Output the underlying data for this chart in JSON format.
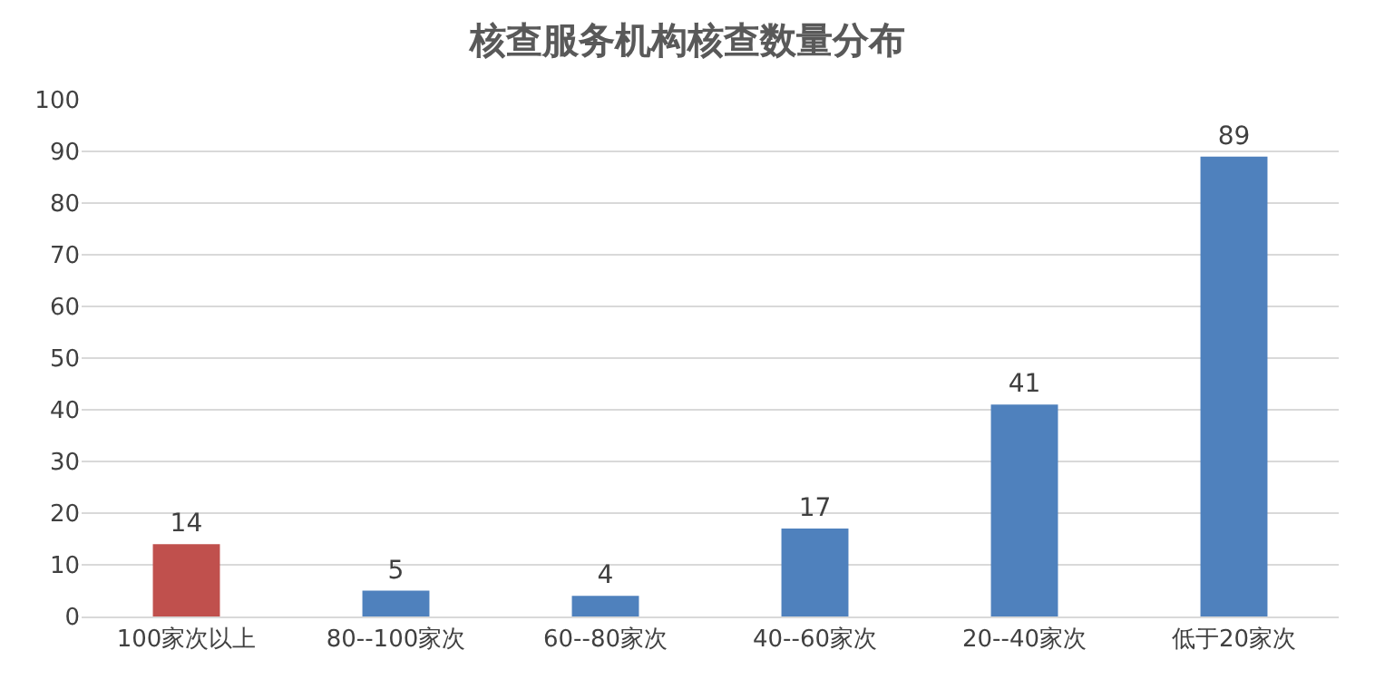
{
  "chart_data": {
    "type": "bar",
    "title": "核查服务机构核查数量分布",
    "categories": [
      "100家次以上",
      "80--100家次",
      "60--80家次",
      "40--60家次",
      "20--40家次",
      "低于20家次"
    ],
    "values": [
      14,
      5,
      4,
      17,
      41,
      89
    ],
    "colors": [
      "#c0504d",
      "#4f81bd",
      "#4f81bd",
      "#4f81bd",
      "#4f81bd",
      "#4f81bd"
    ],
    "ylim": [
      0,
      100
    ],
    "yticks": [
      0,
      10,
      20,
      30,
      40,
      50,
      60,
      70,
      80,
      90,
      100
    ],
    "grid": "y",
    "data_labels": true
  }
}
